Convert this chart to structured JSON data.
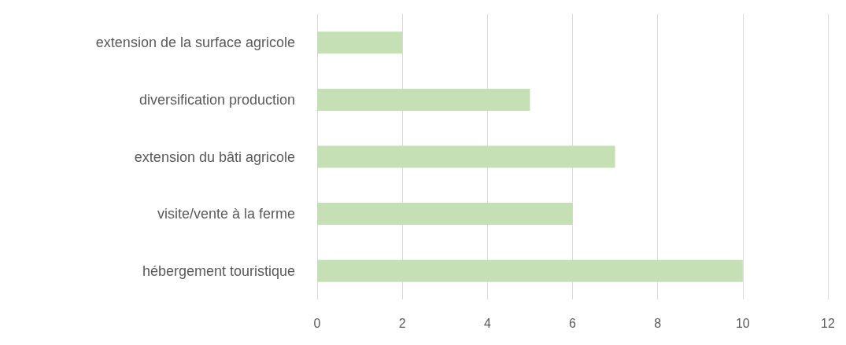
{
  "chart_data": {
    "type": "bar",
    "orientation": "horizontal",
    "categories": [
      "extension de la surface agricole",
      "diversification production",
      "extension du bâti agricole",
      "visite/vente à la ferme",
      "hébergement touristique"
    ],
    "values": [
      2,
      5,
      7,
      6,
      10
    ],
    "color": "#c5e0b4",
    "xlim": [
      0,
      12
    ],
    "xticks": [
      0,
      2,
      4,
      6,
      8,
      10,
      12
    ],
    "grid": "x"
  }
}
